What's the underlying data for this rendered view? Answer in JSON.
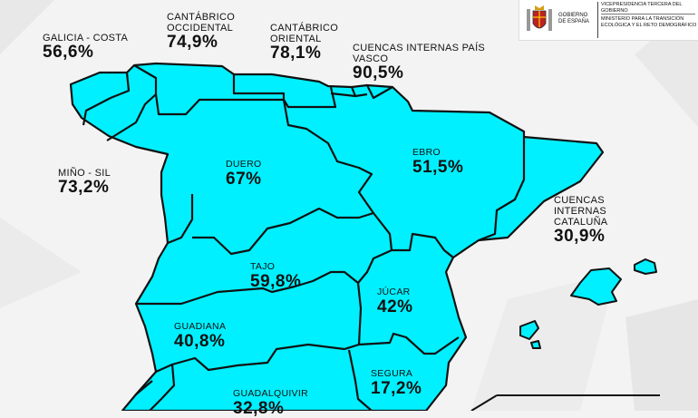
{
  "title": "",
  "header": {
    "government": "GOBIERNO DE ESPAÑA",
    "vicepresidency": "VICEPRESIDENCIA TERCERA DEL GOBIERNO",
    "ministry": "MINISTERIO PARA LA TRANSICIÓN ECOLÓGICA Y EL RETO DEMOGRÁFICO"
  },
  "colors": {
    "basin_fill": "#00f0ff",
    "border": "#111111",
    "background": "#f3f3f3"
  },
  "basins": [
    {
      "id": "galicia-costa",
      "name": "GALICIA - COSTA",
      "value": "56,6%"
    },
    {
      "id": "cantabrico-occidental",
      "name": "CANTÁBRICO OCCIDENTAL",
      "value": "74,9%"
    },
    {
      "id": "cantabrico-oriental",
      "name": "CANTÁBRICO ORIENTAL",
      "value": "78,1%"
    },
    {
      "id": "pais-vasco",
      "name": "CUENCAS INTERNAS PAÍS VASCO",
      "value": "90,5%"
    },
    {
      "id": "mino-sil",
      "name": "MIÑO - SIL",
      "value": "73,2%"
    },
    {
      "id": "duero",
      "name": "DUERO",
      "value": "67%"
    },
    {
      "id": "ebro",
      "name": "EBRO",
      "value": "51,5%"
    },
    {
      "id": "cataluna",
      "name": "CUENCAS INTERNAS CATALUÑA",
      "value": "30,9%"
    },
    {
      "id": "tajo",
      "name": "TAJO",
      "value": "59,8%"
    },
    {
      "id": "jucar",
      "name": "JÚCAR",
      "value": "42%"
    },
    {
      "id": "guadiana",
      "name": "GUADIANA",
      "value": "40,8%"
    },
    {
      "id": "segura",
      "name": "SEGURA",
      "value": "17,2%"
    },
    {
      "id": "guadalquivir",
      "name": "GUADALQUIVIR",
      "value": "32,8%"
    }
  ]
}
